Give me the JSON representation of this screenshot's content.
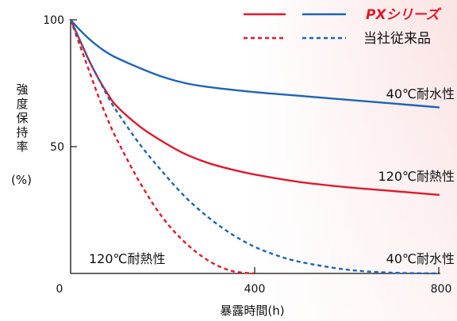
{
  "chart_data": {
    "type": "line",
    "xlabel": "暴露時間(h)",
    "ylabel_text": "強度保持率",
    "ylabel_unit": "(%)",
    "xlim": [
      0,
      800
    ],
    "ylim": [
      0,
      100
    ],
    "x_ticks": [
      "0",
      "400",
      "800"
    ],
    "y_ticks": [
      "50",
      "100"
    ],
    "x_tick_values": [
      0,
      400,
      800
    ],
    "y_tick_values": [
      50,
      100
    ],
    "legend": {
      "placement": "top-right",
      "entries": [
        {
          "label": "PXシリーズ",
          "style": "solid"
        },
        {
          "label": "当社従来品",
          "style": "dashed"
        }
      ]
    },
    "colors": {
      "red": "#e0192b",
      "blue": "#1e64b4"
    },
    "series": [
      {
        "name": "PXシリーズ 40℃耐水性",
        "color": "blue",
        "dash": false,
        "x": [
          0,
          20,
          40,
          60,
          80,
          100,
          150,
          200,
          250,
          300,
          400,
          500,
          600,
          700,
          800
        ],
        "y": [
          100,
          96,
          92.5,
          89.5,
          87,
          85,
          81,
          77.5,
          75,
          73.5,
          71.5,
          70,
          68.5,
          67,
          65.5
        ]
      },
      {
        "name": "PXシリーズ 120℃耐熱性",
        "color": "red",
        "dash": false,
        "x": [
          0,
          20,
          40,
          60,
          80,
          100,
          150,
          200,
          250,
          300,
          350,
          400,
          500,
          600,
          700,
          800
        ],
        "y": [
          100,
          92,
          84,
          77,
          71,
          66,
          58,
          52,
          47,
          43.5,
          41,
          39,
          36,
          34,
          32.5,
          31
        ]
      },
      {
        "name": "当社従来品 120℃耐熱性",
        "color": "red",
        "dash": true,
        "x": [
          0,
          20,
          40,
          60,
          80,
          100,
          150,
          200,
          250,
          300,
          350,
          400
        ],
        "y": [
          100,
          90,
          80,
          70,
          61,
          53,
          36,
          22,
          12,
          5,
          1,
          0
        ]
      },
      {
        "name": "当社従来品 40℃耐水性",
        "color": "blue",
        "dash": true,
        "x": [
          0,
          20,
          40,
          60,
          80,
          100,
          150,
          200,
          250,
          300,
          350,
          400,
          450,
          500,
          600,
          700,
          800
        ],
        "y": [
          100,
          92,
          84,
          77,
          70,
          64,
          51,
          40,
          30,
          22,
          15.5,
          10.5,
          7,
          4.5,
          1.5,
          0.3,
          0
        ]
      }
    ],
    "annotations": [
      {
        "text": "40℃耐水性",
        "x": 800,
        "y": 65.5,
        "color": "#111111"
      },
      {
        "text": "120℃耐熱性",
        "x": 800,
        "y": 31,
        "color": "#111111"
      },
      {
        "text": "40℃耐水性",
        "x": 800,
        "y": 0,
        "color": "#111111"
      },
      {
        "text": "120℃耐熱性",
        "x": 70,
        "y": 0,
        "color": "#111111"
      }
    ]
  }
}
